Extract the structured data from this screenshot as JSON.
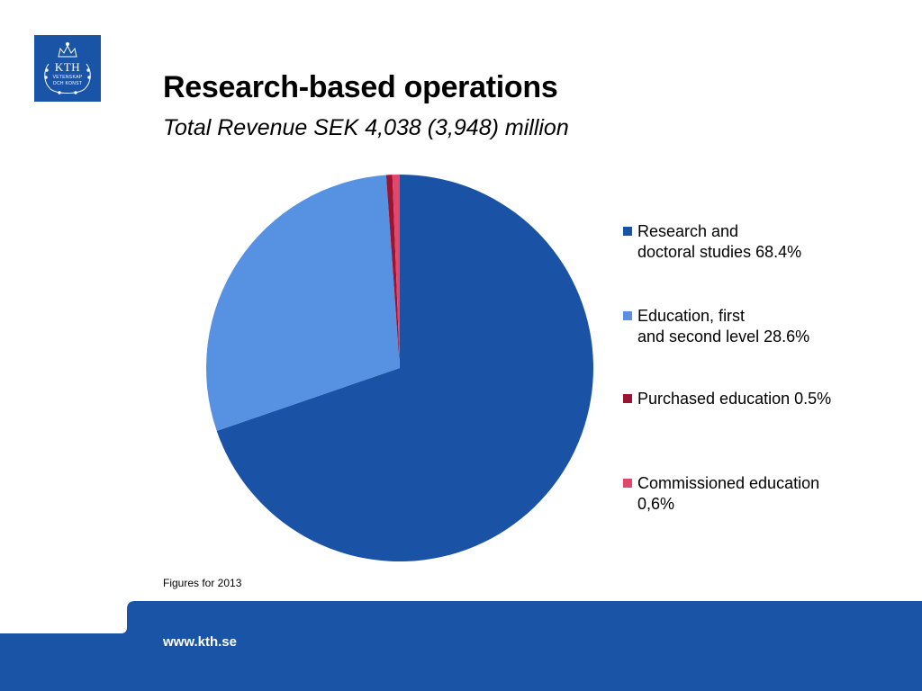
{
  "logo": {
    "text": "KTH",
    "line1": "VETENSKAP",
    "line2": "OCH KONST",
    "color": "#1954a6"
  },
  "title": "Research-based operations",
  "subtitle": "Total Revenue SEK 4,038 (3,948) million",
  "chart_data": {
    "type": "pie",
    "start": "top",
    "direction": "clockwise",
    "slices": [
      {
        "label_line1": "Research and",
        "label_line2": "doctoral studies 68.4%",
        "value": 68.4,
        "color": "#1a52a5"
      },
      {
        "label_line1": "Education, first",
        "label_line2": "and second level 28.6%",
        "value": 28.6,
        "color": "#5791e2"
      },
      {
        "label_line1": "Purchased education 0.5%",
        "label_line2": "",
        "value": 0.5,
        "color": "#9b1431"
      },
      {
        "label_line1": "Commissioned education",
        "label_line2": "0,6%",
        "value": 0.6,
        "color": "#e2466a"
      }
    ],
    "legend_position": "right"
  },
  "footnote": "Figures for 2013",
  "footer": {
    "url": "www.kth.se",
    "color": "#1954a6"
  }
}
